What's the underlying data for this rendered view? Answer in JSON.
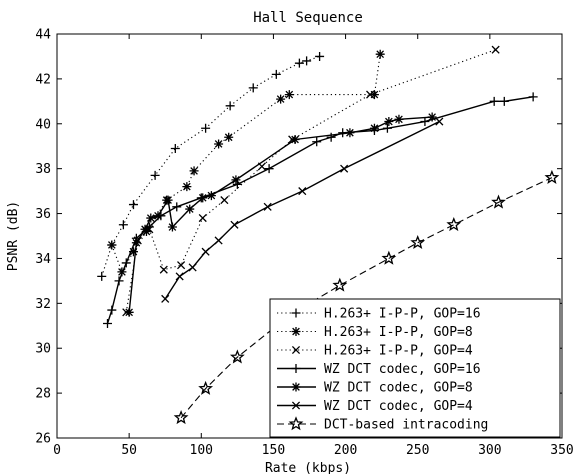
{
  "chart_data": {
    "type": "line",
    "title": "Hall Sequence",
    "xlabel": "Rate (kbps)",
    "ylabel": "PSNR (dB)",
    "xlim": [
      0,
      350
    ],
    "ylim": [
      26,
      44
    ],
    "xticks": [
      0,
      50,
      100,
      150,
      200,
      250,
      300,
      350
    ],
    "yticks": [
      26,
      28,
      30,
      32,
      34,
      36,
      38,
      40,
      42,
      44
    ],
    "legend_position": "bottom-right",
    "series": [
      {
        "name": "H.263+ I-P-P, GOP=16",
        "line_style": "dotted",
        "marker": "plus",
        "points": [
          [
            31,
            33.2
          ],
          [
            38,
            34.6
          ],
          [
            46,
            35.5
          ],
          [
            53,
            36.4
          ],
          [
            68,
            37.7
          ],
          [
            82,
            38.9
          ],
          [
            103,
            39.8
          ],
          [
            120,
            40.8
          ],
          [
            136,
            41.6
          ],
          [
            152,
            42.2
          ],
          [
            168,
            42.7
          ],
          [
            173,
            42.8
          ],
          [
            182,
            43.0
          ]
        ]
      },
      {
        "name": "H.263+ I-P-P, GOP=8",
        "line_style": "dotted",
        "marker": "asterisk",
        "points": [
          [
            38,
            34.6
          ],
          [
            45,
            33.4
          ],
          [
            53,
            34.3
          ],
          [
            62,
            35.2
          ],
          [
            76,
            36.6
          ],
          [
            90,
            37.2
          ],
          [
            95,
            37.9
          ],
          [
            112,
            39.1
          ],
          [
            119,
            39.4
          ],
          [
            155,
            41.1
          ],
          [
            161,
            41.3
          ],
          [
            220,
            41.3
          ],
          [
            224,
            43.1
          ]
        ]
      },
      {
        "name": "H.263+ I-P-P, GOP=4",
        "line_style": "dotted",
        "marker": "cross",
        "points": [
          [
            48,
            31.6
          ],
          [
            56,
            34.8
          ],
          [
            64,
            35.3
          ],
          [
            74,
            33.5
          ],
          [
            86,
            33.7
          ],
          [
            101,
            35.8
          ],
          [
            116,
            36.6
          ],
          [
            142,
            38.1
          ],
          [
            163,
            39.3
          ],
          [
            217,
            41.3
          ],
          [
            304,
            43.3
          ]
        ]
      },
      {
        "name": "WZ DCT codec, GOP=16",
        "line_style": "solid",
        "marker": "plus",
        "points": [
          [
            35,
            31.1
          ],
          [
            38,
            31.7
          ],
          [
            43,
            33.0
          ],
          [
            48,
            33.8
          ],
          [
            55,
            34.9
          ],
          [
            64,
            35.4
          ],
          [
            72,
            35.9
          ],
          [
            83,
            36.3
          ],
          [
            100,
            36.7
          ],
          [
            125,
            37.3
          ],
          [
            147,
            38.0
          ],
          [
            180,
            39.2
          ],
          [
            190,
            39.4
          ],
          [
            198,
            39.6
          ],
          [
            220,
            39.7
          ],
          [
            229,
            39.8
          ],
          [
            255,
            40.1
          ],
          [
            303,
            41.0
          ],
          [
            310,
            41.0
          ],
          [
            330,
            41.2
          ]
        ]
      },
      {
        "name": "WZ DCT codec, GOP=8",
        "line_style": "solid",
        "marker": "asterisk",
        "points": [
          [
            50,
            31.6
          ],
          [
            55,
            34.7
          ],
          [
            61,
            35.3
          ],
          [
            65,
            35.8
          ],
          [
            70,
            35.9
          ],
          [
            77,
            36.6
          ],
          [
            80,
            35.4
          ],
          [
            92,
            36.2
          ],
          [
            101,
            36.7
          ],
          [
            107,
            36.8
          ],
          [
            124,
            37.5
          ],
          [
            165,
            39.3
          ],
          [
            203,
            39.6
          ],
          [
            220,
            39.8
          ],
          [
            230,
            40.1
          ],
          [
            237,
            40.2
          ],
          [
            260,
            40.3
          ]
        ]
      },
      {
        "name": "WZ DCT codec, GOP=4",
        "line_style": "solid",
        "marker": "cross",
        "points": [
          [
            75,
            32.2
          ],
          [
            85,
            33.2
          ],
          [
            94,
            33.6
          ],
          [
            103,
            34.3
          ],
          [
            112,
            34.8
          ],
          [
            123,
            35.5
          ],
          [
            146,
            36.3
          ],
          [
            170,
            37.0
          ],
          [
            199,
            38.0
          ],
          [
            265,
            40.1
          ]
        ]
      },
      {
        "name": "DCT-based intracoding",
        "line_style": "dashed",
        "marker": "star",
        "points": [
          [
            86,
            26.9
          ],
          [
            103,
            28.2
          ],
          [
            125,
            29.6
          ],
          [
            162,
            31.5
          ],
          [
            196,
            32.8
          ],
          [
            230,
            34.0
          ],
          [
            250,
            34.7
          ],
          [
            275,
            35.5
          ],
          [
            306,
            36.5
          ],
          [
            343,
            37.6
          ]
        ]
      }
    ]
  }
}
